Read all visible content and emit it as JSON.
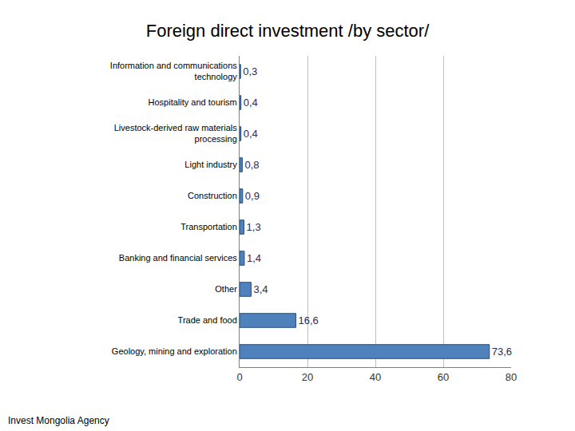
{
  "chart_data": {
    "type": "bar",
    "orientation": "horizontal",
    "title": "Foreign direct investment /by sector/",
    "categories": [
      "Information and communications technology",
      "Hospitality and tourism",
      "Livestock-derived raw materials processing",
      "Light industry",
      "Construction",
      "Transportation",
      "Banking and financial services",
      "Other",
      "Trade and food",
      "Geology, mining and exploration"
    ],
    "values": [
      0.3,
      0.4,
      0.4,
      0.8,
      0.9,
      1.3,
      1.4,
      3.4,
      16.6,
      73.6
    ],
    "value_labels": [
      "0,3",
      "0,4",
      "0,4",
      "0,8",
      "0,9",
      "1,3",
      "1,4",
      "3,4",
      "16,6",
      "73,6"
    ],
    "data_labels": true,
    "color": "#4f81bd",
    "xlim": [
      0,
      80
    ],
    "xticks": [
      0,
      20,
      40,
      60,
      80
    ],
    "grid": true,
    "annotations": [
      "Invest Mongolia Agency"
    ]
  }
}
